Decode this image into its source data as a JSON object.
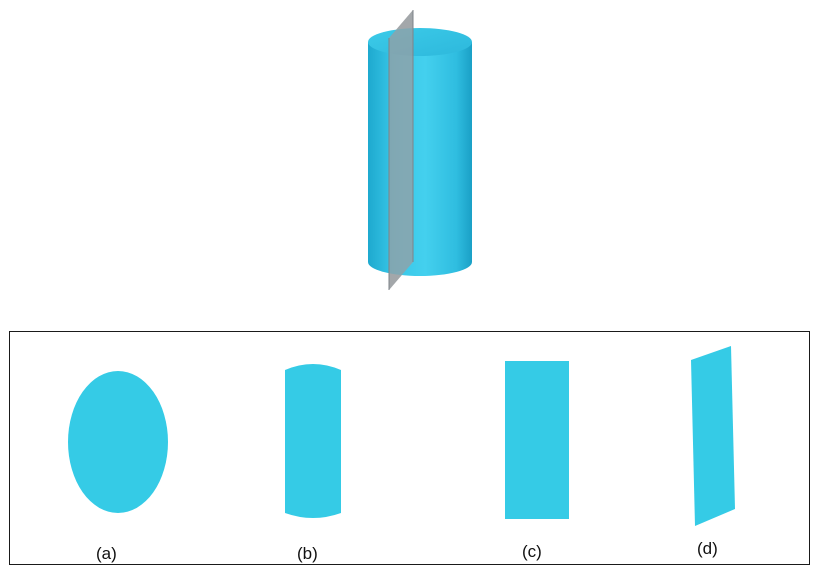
{
  "colors": {
    "cylinder": "#35cbe6",
    "plane": "#8a8f94",
    "frame_border": "#1a1a1a"
  },
  "options": [
    {
      "label": "(a)",
      "shape": "ellipse"
    },
    {
      "label": "(b)",
      "shape": "rectangle-with-curved-ends"
    },
    {
      "label": "(c)",
      "shape": "rectangle"
    },
    {
      "label": "(d)",
      "shape": "parallelogram"
    }
  ]
}
